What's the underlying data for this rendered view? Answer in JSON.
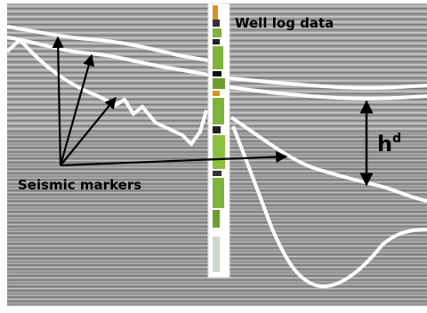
{
  "figure": {
    "well_label": "Well log data",
    "seismic_label": "Seismic markers",
    "thickness_label": {
      "base": "h",
      "superscript": "d"
    }
  },
  "colors": {
    "section_background": "#9b9b9b",
    "horizon_lines": "#ffffff",
    "arrows": "#000000",
    "well_log_green": "#7fb33a",
    "well_log_orange": "#d49520",
    "well_log_black": "#111111"
  }
}
